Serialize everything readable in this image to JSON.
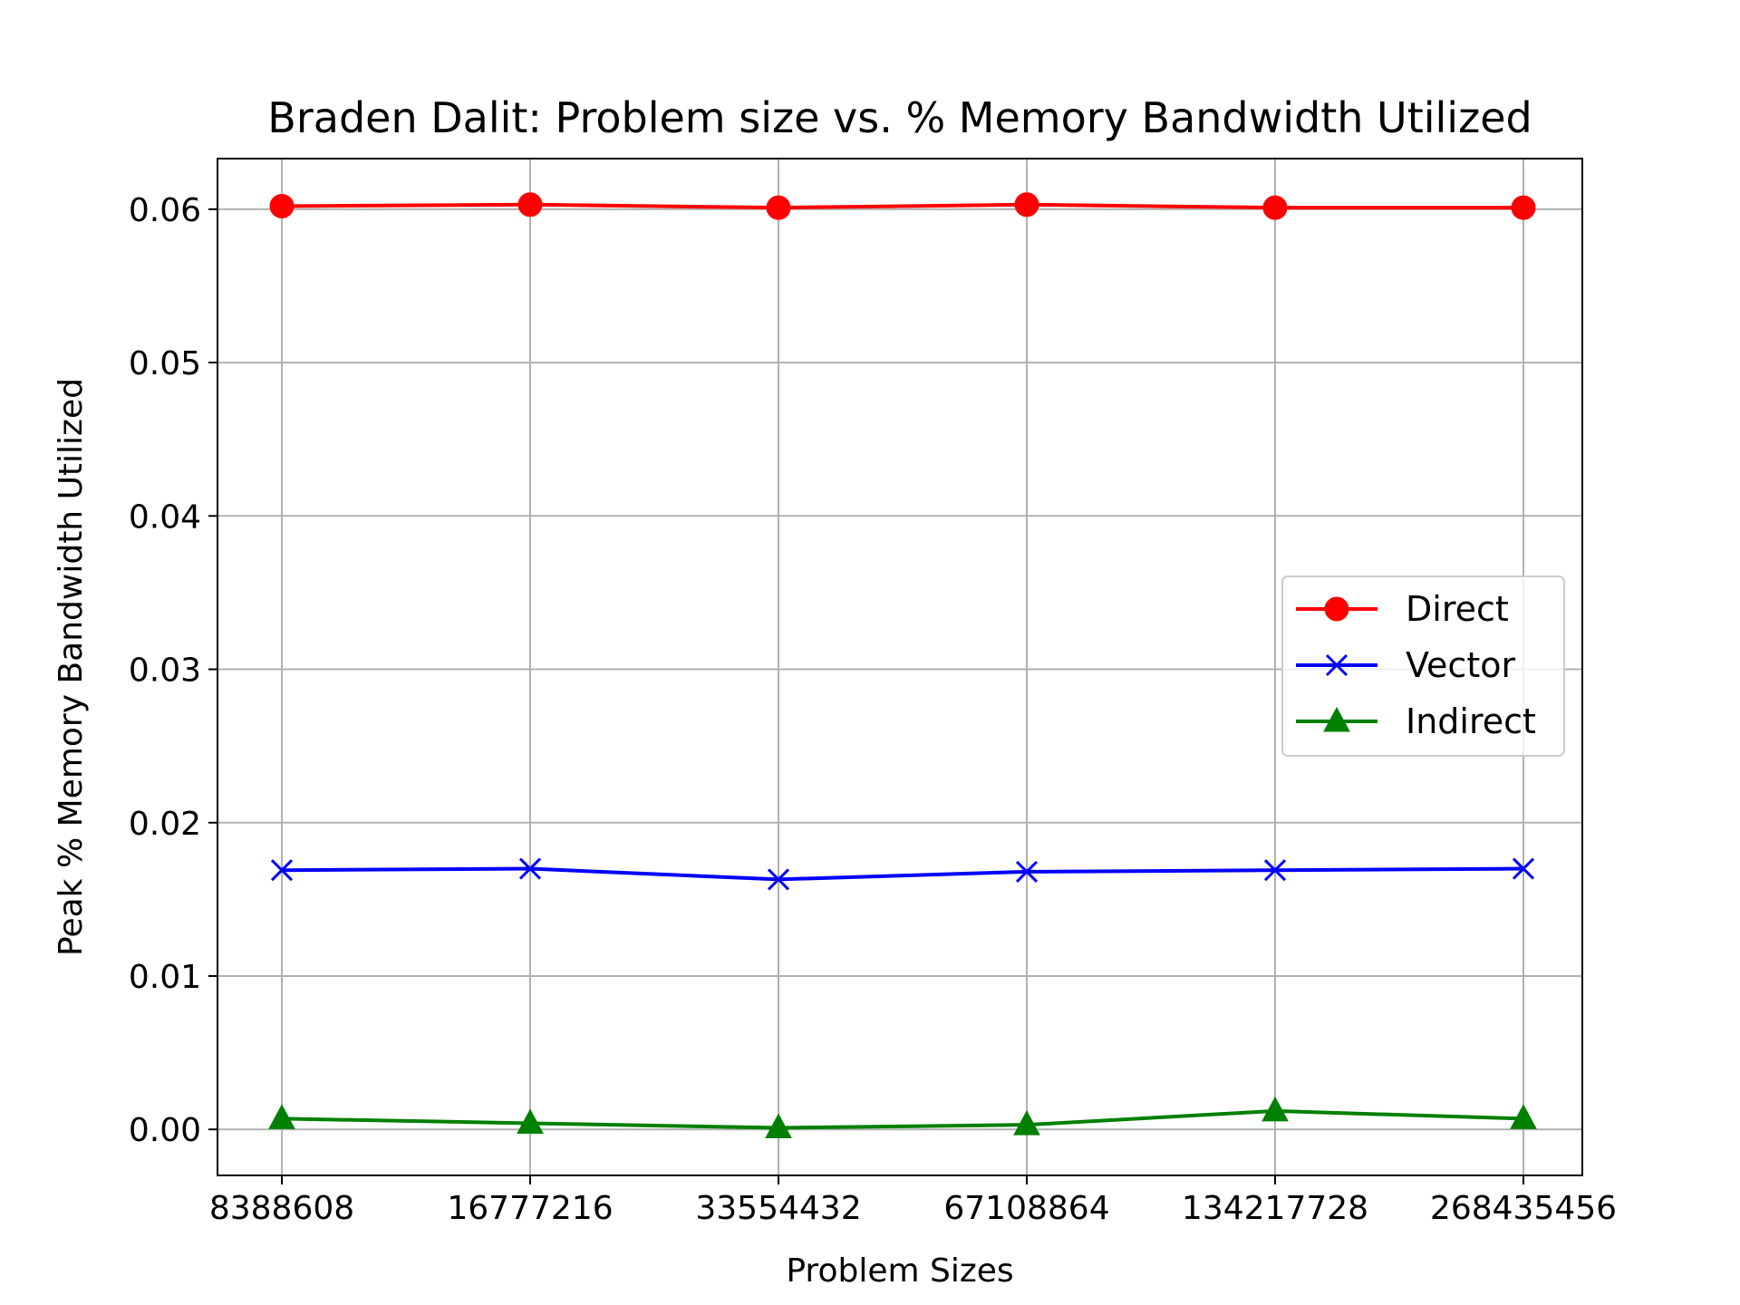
{
  "chart_data": {
    "type": "line",
    "title": "Braden Dalit: Problem size vs. % Memory Bandwidth Utilized",
    "xlabel": "Problem Sizes",
    "ylabel": "Peak % Memory Bandwidth Utilized",
    "categories": [
      "8388608",
      "16777216",
      "33554432",
      "67108864",
      "134217728",
      "268435456"
    ],
    "ylim": [
      -0.003,
      0.0633
    ],
    "yticks": [
      "0.00",
      "0.01",
      "0.02",
      "0.03",
      "0.04",
      "0.05",
      "0.06"
    ],
    "grid": true,
    "legend_position": "center-right",
    "series": [
      {
        "name": "Direct",
        "color": "#ff0000",
        "marker": "circle",
        "values": [
          0.0602,
          0.0603,
          0.0601,
          0.0603,
          0.0601,
          0.0601
        ]
      },
      {
        "name": "Vector",
        "color": "#0000ff",
        "marker": "x",
        "values": [
          0.0169,
          0.017,
          0.0163,
          0.0168,
          0.0169,
          0.017
        ]
      },
      {
        "name": "Indirect",
        "color": "#008000",
        "marker": "triangle",
        "values": [
          0.0007,
          0.0004,
          0.0001,
          0.0003,
          0.0012,
          0.0007
        ]
      }
    ]
  }
}
